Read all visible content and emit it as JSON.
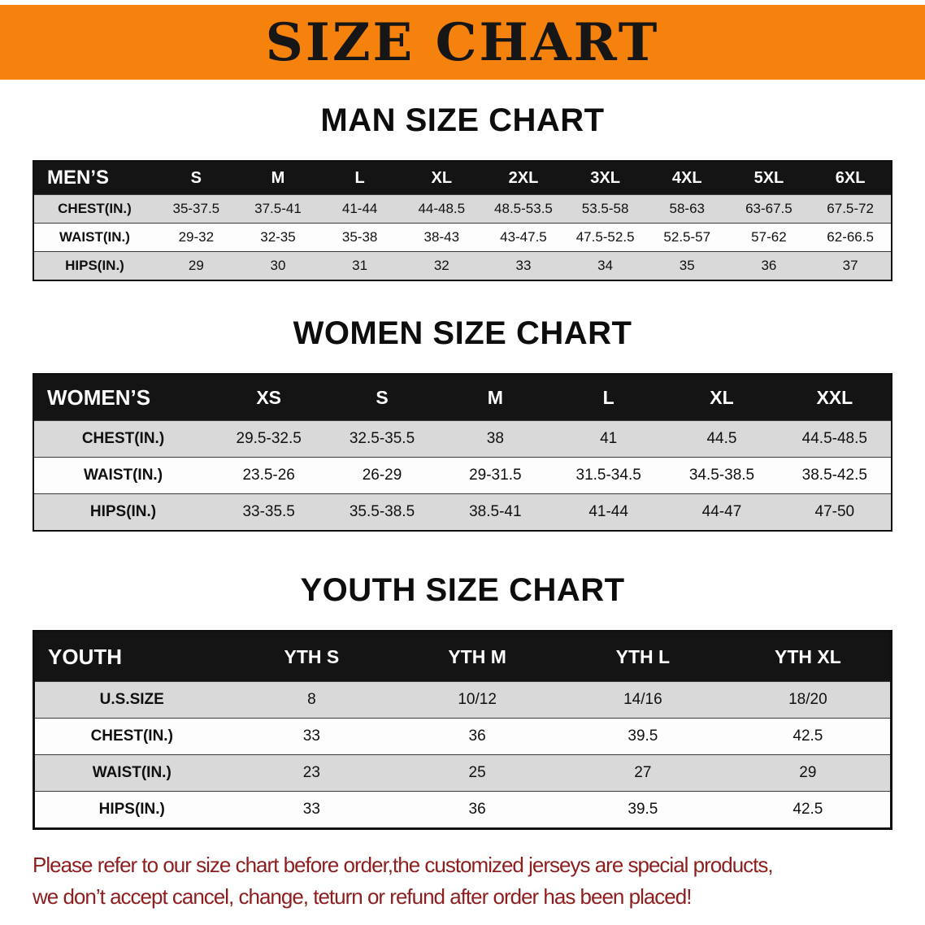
{
  "banner": {
    "title": "SIZE CHART",
    "background_color": "#f5820d",
    "text_color": "#161616"
  },
  "sections": [
    {
      "name": "men",
      "title": "MAN SIZE CHART",
      "table": {
        "header_label": "MEN’S",
        "columns": [
          "S",
          "M",
          "L",
          "XL",
          "2XL",
          "3XL",
          "4XL",
          "5XL",
          "6XL"
        ],
        "rows": [
          {
            "label": "CHEST(IN.)",
            "values": [
              "35-37.5",
              "37.5-41",
              "41-44",
              "44-48.5",
              "48.5-53.5",
              "53.5-58",
              "58-63",
              "63-67.5",
              "67.5-72"
            ]
          },
          {
            "label": "WAIST(IN.)",
            "values": [
              "29-32",
              "32-35",
              "35-38",
              "38-43",
              "43-47.5",
              "47.5-52.5",
              "52.5-57",
              "57-62",
              "62-66.5"
            ]
          },
          {
            "label": "HIPS(IN.)",
            "values": [
              "29",
              "30",
              "31",
              "32",
              "33",
              "34",
              "35",
              "36",
              "37"
            ]
          }
        ]
      }
    },
    {
      "name": "women",
      "title": "WOMEN SIZE CHART",
      "table": {
        "header_label": "WOMEN’S",
        "columns": [
          "XS",
          "S",
          "M",
          "L",
          "XL",
          "XXL"
        ],
        "rows": [
          {
            "label": "CHEST(IN.)",
            "values": [
              "29.5-32.5",
              "32.5-35.5",
              "38",
              "41",
              "44.5",
              "44.5-48.5"
            ]
          },
          {
            "label": "WAIST(IN.)",
            "values": [
              "23.5-26",
              "26-29",
              "29-31.5",
              "31.5-34.5",
              "34.5-38.5",
              "38.5-42.5"
            ]
          },
          {
            "label": "HIPS(IN.)",
            "values": [
              "33-35.5",
              "35.5-38.5",
              "38.5-41",
              "41-44",
              "44-47",
              "47-50"
            ]
          }
        ]
      }
    },
    {
      "name": "youth",
      "title": "YOUTH SIZE CHART",
      "table": {
        "header_label": "YOUTH",
        "columns": [
          "YTH S",
          "YTH M",
          "YTH L",
          "YTH XL"
        ],
        "rows": [
          {
            "label": "U.S.SIZE",
            "values": [
              "8",
              "10/12",
              "14/16",
              "18/20"
            ]
          },
          {
            "label": "CHEST(IN.)",
            "values": [
              "33",
              "36",
              "39.5",
              "42.5"
            ]
          },
          {
            "label": "WAIST(IN.)",
            "values": [
              "23",
              "25",
              "27",
              "29"
            ]
          },
          {
            "label": "HIPS(IN.)",
            "values": [
              "33",
              "36",
              "39.5",
              "42.5"
            ]
          }
        ]
      }
    }
  ],
  "footer": {
    "line1": "Please refer to our size chart before order,the customized jerseys are special products,",
    "line2": "we don’t accept cancel, change, teturn or refund after order has been placed!",
    "text_color": "#8e1e1e"
  },
  "style_colors": {
    "table_header_bg": "#141414",
    "row_stripe_gray": "#d9d9d9",
    "table_border": "#101010"
  }
}
